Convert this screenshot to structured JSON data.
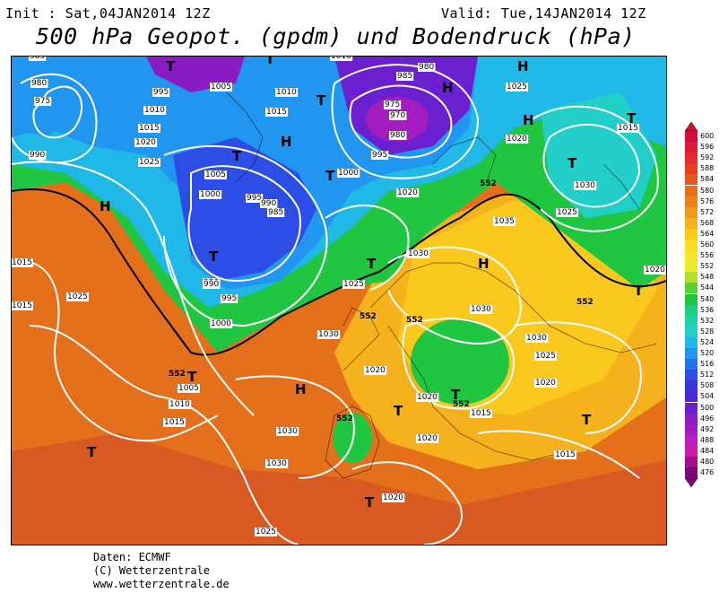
{
  "header": {
    "init": "Init : Sat,04JAN2014 12Z",
    "valid": "Valid: Tue,14JAN2014 12Z",
    "title": "500 hPa Geopot. (gpdm) und Bodendruck (hPa)"
  },
  "footer": {
    "line1": "Daten: ECMWF",
    "line2": "(C) Wetterzentrale",
    "line3": "www.wetterzentrale.de"
  },
  "scale": {
    "labels": [
      "600",
      "596",
      "592",
      "588",
      "584",
      "580",
      "576",
      "572",
      "568",
      "564",
      "560",
      "556",
      "552",
      "548",
      "544",
      "540",
      "536",
      "532",
      "528",
      "524",
      "520",
      "516",
      "512",
      "508",
      "504",
      "500",
      "496",
      "492",
      "488",
      "484",
      "480",
      "476"
    ],
    "colors": [
      "#d10f3a",
      "#e0183a",
      "#e62a2e",
      "#e8401e",
      "#e8561a",
      "#e86c1a",
      "#ec801a",
      "#f09a1a",
      "#f6b21c",
      "#fbc81e",
      "#fddc22",
      "#f8e62a",
      "#e6ec2e",
      "#b0e22c",
      "#56d234",
      "#20c640",
      "#1ccf7a",
      "#1ed2a8",
      "#22cfc8",
      "#20b8e6",
      "#2196f0",
      "#2770ec",
      "#2d4ee6",
      "#3634de",
      "#4a28d6",
      "#6a20ce",
      "#8a1cc6",
      "#a21cbe",
      "#c01cc4",
      "#cc1ca8",
      "#a0108c",
      "#7a0a74"
    ]
  },
  "map": {
    "pressure_labels": [
      "985",
      "980",
      "975",
      "995",
      "1005",
      "1010",
      "1015",
      "1020",
      "1025",
      "990",
      "1010",
      "1015",
      "1005",
      "1000",
      "995",
      "990",
      "985",
      "990",
      "1010",
      "985",
      "980",
      "975",
      "970",
      "980",
      "995",
      "1000",
      "1020",
      "1025",
      "1015",
      "1020",
      "1030",
      "1025",
      "1035",
      "1030",
      "1020",
      "1015",
      "1025",
      "1030",
      "1025",
      "1030",
      "1000",
      "995",
      "990",
      "1005",
      "1010",
      "1015",
      "1030",
      "1020",
      "1015",
      "1020",
      "1020",
      "1015",
      "1030",
      "1025",
      "1020",
      "1020",
      "1015",
      "1025",
      "1030",
      "1025",
      "1020",
      "1015"
    ],
    "geopot_labels": [
      "552",
      "552",
      "552",
      "552",
      "552",
      "552",
      "552",
      "552"
    ],
    "high_symbol": "H",
    "low_symbol": "T"
  }
}
